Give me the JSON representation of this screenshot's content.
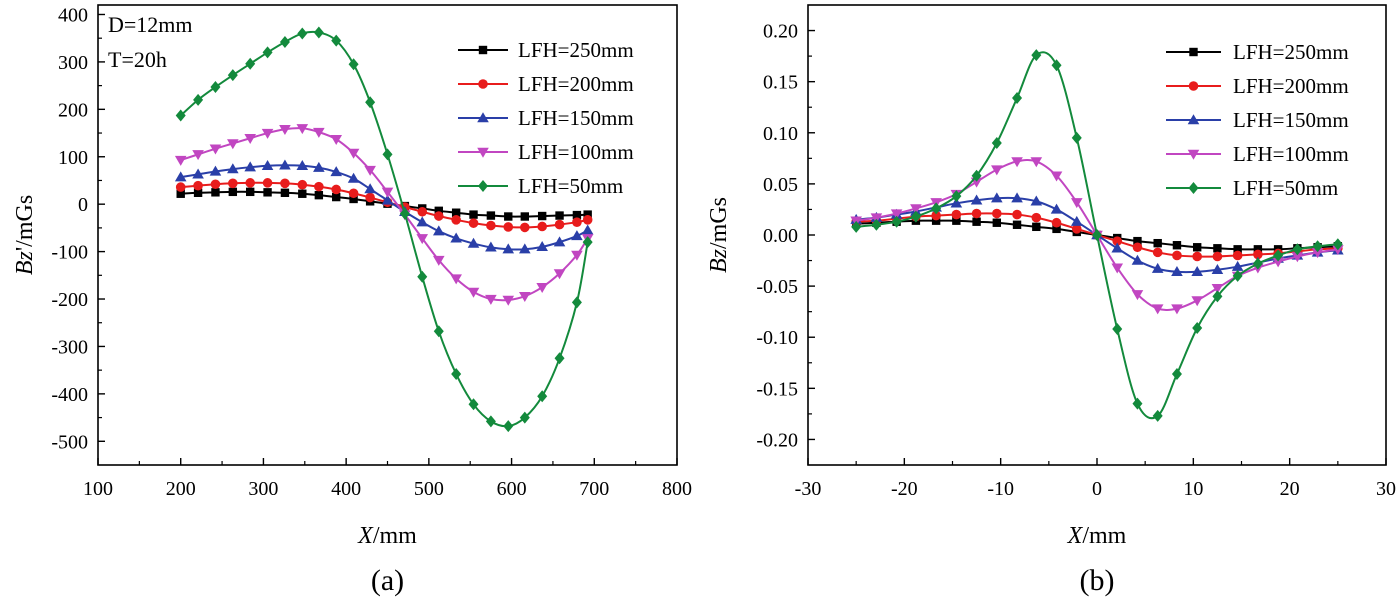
{
  "figure": {
    "colors": {
      "LFH=250mm": "#000000",
      "LFH=200mm": "#e81c1c",
      "LFH=150mm": "#2a3fa8",
      "LFH=100mm": "#c146c1",
      "LFH=50mm": "#138a3c"
    },
    "markers": {
      "LFH=250mm": "square",
      "LFH=200mm": "circle",
      "LFH=150mm": "triangle-up",
      "LFH=100mm": "triangle-down",
      "LFH=50mm": "diamond"
    }
  },
  "chart_data": [
    {
      "id": "a",
      "type": "line",
      "panel_label": "(a)",
      "annotations": [
        "D=12mm",
        "T=20h"
      ],
      "xlabel_main": "X",
      "xlabel_unit": "/mm",
      "ylabel_main": "Bz",
      "ylabel_unit": "'/mGs",
      "xlim": [
        100,
        800
      ],
      "ylim": [
        -550,
        420
      ],
      "xticks": [
        100,
        200,
        300,
        400,
        500,
        600,
        700,
        800
      ],
      "yticks": [
        -500,
        -400,
        -300,
        -200,
        -100,
        0,
        100,
        200,
        300,
        400
      ],
      "xtick_labels": [
        "100",
        "200",
        "300",
        "400",
        "500",
        "600",
        "700",
        "800"
      ],
      "ytick_labels": [
        "-500",
        "-400",
        "-300",
        "-200",
        "-100",
        "0",
        "100",
        "200",
        "300",
        "400"
      ],
      "legend_position": "top-right",
      "x": [
        200,
        221,
        242,
        263,
        284,
        305,
        326,
        347,
        367,
        388,
        409,
        429,
        450,
        471,
        492,
        512,
        533,
        554,
        575,
        596,
        616,
        637,
        658,
        679,
        692
      ],
      "series": [
        {
          "name": "LFH=250mm",
          "values": [
            22,
            24,
            25,
            26,
            26,
            25,
            24,
            22,
            19,
            15,
            11,
            6,
            1,
            -4,
            -9,
            -14,
            -18,
            -22,
            -24,
            -26,
            -26,
            -25,
            -24,
            -23,
            -22
          ]
        },
        {
          "name": "LFH=200mm",
          "values": [
            36,
            39,
            42,
            44,
            45,
            45,
            44,
            41,
            37,
            31,
            23,
            14,
            4,
            -6,
            -16,
            -25,
            -33,
            -40,
            -45,
            -48,
            -49,
            -47,
            -43,
            -38,
            -33
          ]
        },
        {
          "name": "LFH=150mm",
          "values": [
            57,
            63,
            69,
            74,
            78,
            81,
            82,
            81,
            77,
            68,
            54,
            32,
            8,
            -16,
            -38,
            -57,
            -72,
            -83,
            -91,
            -95,
            -95,
            -90,
            -80,
            -67,
            -55
          ]
        },
        {
          "name": "LFH=100mm",
          "values": [
            93,
            105,
            117,
            128,
            139,
            150,
            158,
            160,
            152,
            137,
            108,
            72,
            26,
            -22,
            -72,
            -118,
            -157,
            -185,
            -200,
            -202,
            -194,
            -175,
            -146,
            -107,
            -72
          ]
        },
        {
          "name": "LFH=50mm",
          "values": [
            187,
            220,
            247,
            272,
            296,
            320,
            342,
            360,
            362,
            345,
            295,
            215,
            105,
            -20,
            -153,
            -268,
            -358,
            -422,
            -458,
            -468,
            -450,
            -405,
            -325,
            -207,
            -80
          ]
        }
      ]
    },
    {
      "id": "b",
      "type": "line",
      "panel_label": "(b)",
      "annotations": [],
      "xlabel_main": "X",
      "xlabel_unit": "/mm",
      "ylabel_main": "Bz",
      "ylabel_unit": "/mGs",
      "xlim": [
        -30,
        30
      ],
      "ylim": [
        -0.225,
        0.225
      ],
      "xticks": [
        -30,
        -20,
        -10,
        0,
        10,
        20,
        30
      ],
      "yticks": [
        -0.2,
        -0.15,
        -0.1,
        -0.05,
        0.0,
        0.05,
        0.1,
        0.15,
        0.2
      ],
      "xtick_labels": [
        "-30",
        "-20",
        "-10",
        "0",
        "10",
        "20",
        "30"
      ],
      "ytick_labels": [
        "-0.20",
        "-0.15",
        "-0.10",
        "-0.05",
        "0.00",
        "0.05",
        "0.10",
        "0.15",
        "0.20"
      ],
      "legend_position": "top-right",
      "x": [
        -25,
        -22.9,
        -20.8,
        -18.8,
        -16.7,
        -14.6,
        -12.5,
        -10.4,
        -8.3,
        -6.3,
        -4.2,
        -2.1,
        0,
        2.1,
        4.2,
        6.3,
        8.3,
        10.4,
        12.5,
        14.6,
        16.7,
        18.8,
        20.8,
        22.9,
        25
      ],
      "series": [
        {
          "name": "LFH=250mm",
          "values": [
            0.011,
            0.012,
            0.013,
            0.014,
            0.014,
            0.014,
            0.013,
            0.012,
            0.01,
            0.008,
            0.006,
            0.003,
            0.0,
            -0.003,
            -0.006,
            -0.008,
            -0.01,
            -0.012,
            -0.013,
            -0.014,
            -0.014,
            -0.014,
            -0.013,
            -0.012,
            -0.011
          ]
        },
        {
          "name": "LFH=200mm",
          "values": [
            0.013,
            0.014,
            0.016,
            0.018,
            0.019,
            0.02,
            0.021,
            0.021,
            0.02,
            0.017,
            0.012,
            0.006,
            0.0,
            -0.006,
            -0.012,
            -0.017,
            -0.02,
            -0.021,
            -0.021,
            -0.02,
            -0.019,
            -0.018,
            -0.016,
            -0.014,
            -0.013
          ]
        },
        {
          "name": "LFH=150mm",
          "values": [
            0.015,
            0.017,
            0.02,
            0.023,
            0.027,
            0.031,
            0.034,
            0.036,
            0.036,
            0.033,
            0.025,
            0.013,
            0.0,
            -0.013,
            -0.025,
            -0.033,
            -0.036,
            -0.036,
            -0.034,
            -0.031,
            -0.027,
            -0.023,
            -0.02,
            -0.017,
            -0.015
          ]
        },
        {
          "name": "LFH=100mm",
          "values": [
            0.014,
            0.017,
            0.021,
            0.026,
            0.032,
            0.04,
            0.052,
            0.064,
            0.072,
            0.072,
            0.058,
            0.032,
            0.0,
            -0.032,
            -0.058,
            -0.072,
            -0.072,
            -0.064,
            -0.052,
            -0.04,
            -0.032,
            -0.026,
            -0.021,
            -0.017,
            -0.014
          ]
        },
        {
          "name": "LFH=50mm",
          "values": [
            0.008,
            0.01,
            0.013,
            0.018,
            0.026,
            0.038,
            0.058,
            0.09,
            0.134,
            0.176,
            0.166,
            0.095,
            0.0,
            -0.092,
            -0.165,
            -0.177,
            -0.136,
            -0.091,
            -0.06,
            -0.04,
            -0.028,
            -0.02,
            -0.014,
            -0.011,
            -0.009
          ]
        }
      ]
    }
  ]
}
